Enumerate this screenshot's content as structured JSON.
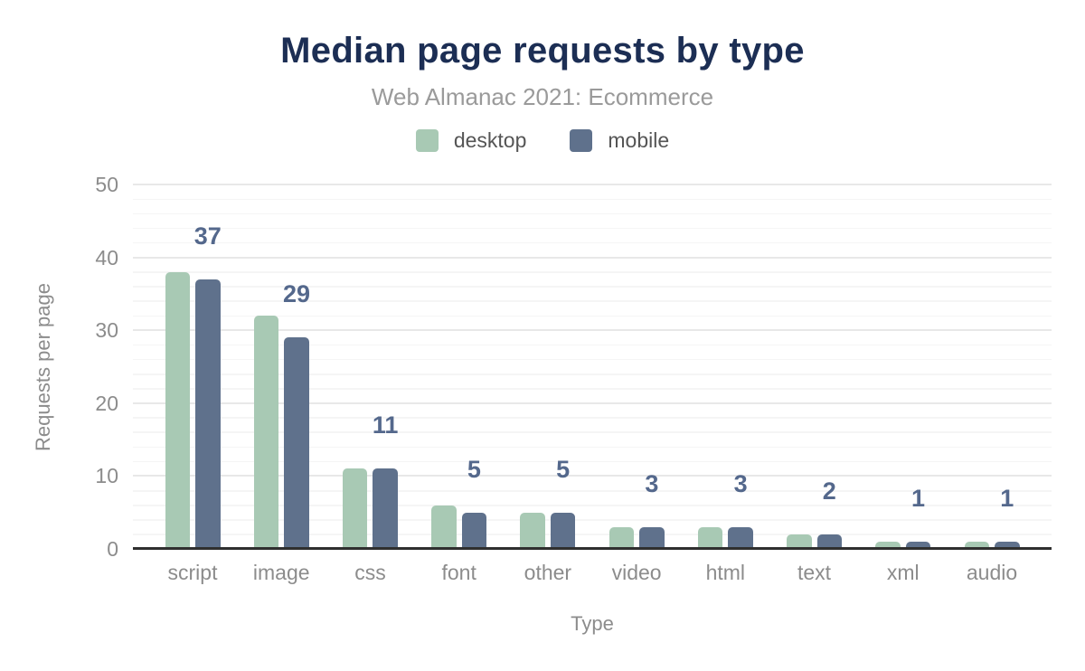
{
  "chart_data": {
    "type": "bar",
    "title": "Median page requests by type",
    "subtitle": "Web Almanac 2021: Ecommerce",
    "xlabel": "Type",
    "ylabel": "Requests per page",
    "ylim": [
      0,
      50
    ],
    "yticks": [
      0,
      10,
      20,
      30,
      40,
      50
    ],
    "minor_tick_step": 2,
    "grid": true,
    "legend_position": "top",
    "categories": [
      "script",
      "image",
      "css",
      "font",
      "other",
      "video",
      "html",
      "text",
      "xml",
      "audio"
    ],
    "series": [
      {
        "name": "desktop",
        "color": "#a8c9b4",
        "values": [
          38,
          32,
          11,
          6,
          5,
          3,
          3,
          2,
          1,
          1
        ]
      },
      {
        "name": "mobile",
        "color": "#5f718c",
        "values": [
          37,
          29,
          11,
          5,
          5,
          3,
          3,
          2,
          1,
          1
        ]
      }
    ],
    "data_labels": {
      "series": "mobile",
      "values": [
        "37",
        "29",
        "11",
        "5",
        "5",
        "3",
        "3",
        "2",
        "1",
        "1"
      ],
      "color": "#54688c"
    }
  },
  "colors": {
    "title": "#1c2e54",
    "subtitle": "#9a9a9a",
    "axis_text": "#8c8c8c",
    "axis_line": "#2f2f2f",
    "major_grid": "#e8e8e8",
    "minor_grid": "#f5f5f5",
    "background": "#ffffff"
  }
}
